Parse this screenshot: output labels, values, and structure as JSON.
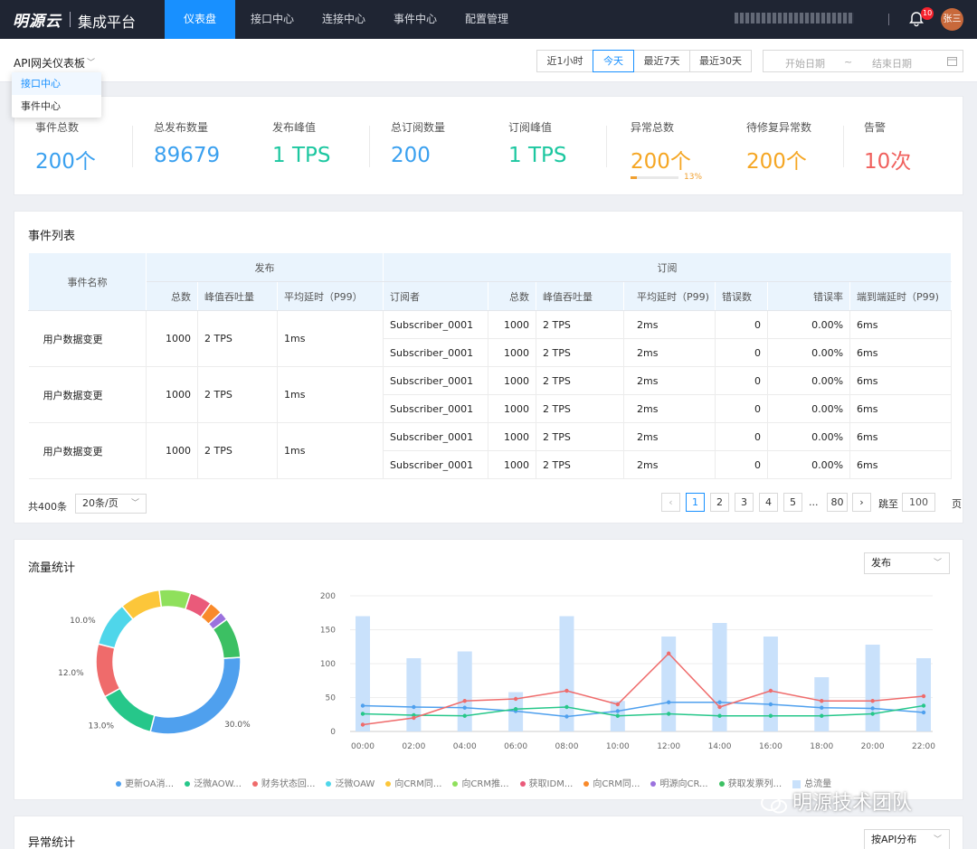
{
  "app": {
    "logo": "明源云",
    "name": "集成平台"
  },
  "nav": [
    {
      "label": "仪表盘",
      "active": true
    },
    {
      "label": "接口中心",
      "active": false
    },
    {
      "label": "连接中心",
      "active": false
    },
    {
      "label": "事件中心",
      "active": false
    },
    {
      "label": "配置管理",
      "active": false
    }
  ],
  "user": {
    "notification_count": "10",
    "avatar": "张三"
  },
  "dashboard_select": {
    "value": "API网关仪表板",
    "options": [
      "接口中心",
      "事件中心"
    ]
  },
  "time_range": {
    "options": [
      "近1小时",
      "今天",
      "最近7天",
      "最近30天"
    ],
    "selected": "今天",
    "start_placeholder": "开始日期",
    "separator": "~",
    "end_placeholder": "结束日期"
  },
  "stats": [
    {
      "label": "事件总数",
      "value": "200个",
      "color": "#3aa0ef"
    },
    {
      "label": "总发布数量",
      "value": "89679",
      "color": "#3aa0ef"
    },
    {
      "label": "发布峰值",
      "value": "1 TPS",
      "color": "#1cc7a0"
    },
    {
      "label": "总订阅数量",
      "value": "200",
      "color": "#3aa0ef"
    },
    {
      "label": "订阅峰值",
      "value": "1 TPS",
      "color": "#1cc7a0"
    },
    {
      "label": "异常总数",
      "value": "200个",
      "color": "#f5a623",
      "progress": 0.13,
      "progress_label": "13%"
    },
    {
      "label": "待修复异常数",
      "value": "200个",
      "color": "#f5a623"
    },
    {
      "label": "告警",
      "value": "10次",
      "color": "#f0605d"
    }
  ],
  "event_table": {
    "title": "事件列表",
    "group_headers": {
      "name": "事件名称",
      "publish": "发布",
      "subscribe": "订阅"
    },
    "columns": [
      "总数",
      "峰值吞吐量",
      "平均延时（P99）",
      "订阅者",
      "总数",
      "峰值吞吐量",
      "平均延时（P99)",
      "错误数",
      "错误率",
      "端到端延时（P99)"
    ],
    "rows": [
      {
        "name": "用户数据变更",
        "total": "1000",
        "peak": "2 TPS",
        "latency": "1ms",
        "subs": [
          {
            "subscriber": "Subscriber_0001",
            "total": "1000",
            "peak": "2 TPS",
            "latency": "2ms",
            "errors": "0",
            "error_rate": "0.00%",
            "e2e": "6ms"
          },
          {
            "subscriber": "Subscriber_0001",
            "total": "1000",
            "peak": "2 TPS",
            "latency": "2ms",
            "errors": "0",
            "error_rate": "0.00%",
            "e2e": "6ms"
          }
        ]
      },
      {
        "name": "用户数据变更",
        "total": "1000",
        "peak": "2 TPS",
        "latency": "1ms",
        "subs": [
          {
            "subscriber": "Subscriber_0001",
            "total": "1000",
            "peak": "2 TPS",
            "latency": "2ms",
            "errors": "0",
            "error_rate": "0.00%",
            "e2e": "6ms"
          },
          {
            "subscriber": "Subscriber_0001",
            "total": "1000",
            "peak": "2 TPS",
            "latency": "2ms",
            "errors": "0",
            "error_rate": "0.00%",
            "e2e": "6ms"
          }
        ]
      },
      {
        "name": "用户数据变更",
        "total": "1000",
        "peak": "2 TPS",
        "latency": "1ms",
        "subs": [
          {
            "subscriber": "Subscriber_0001",
            "total": "1000",
            "peak": "2 TPS",
            "latency": "2ms",
            "errors": "0",
            "error_rate": "0.00%",
            "e2e": "6ms"
          },
          {
            "subscriber": "Subscriber_0001",
            "total": "1000",
            "peak": "2 TPS",
            "latency": "2ms",
            "errors": "0",
            "error_rate": "0.00%",
            "e2e": "6ms"
          }
        ]
      }
    ],
    "pagination": {
      "total": "共400条",
      "page_size": "20条/页",
      "pages": [
        "1",
        "2",
        "3",
        "4",
        "5",
        "...",
        "80"
      ],
      "current": "1",
      "jump_label": "跳至",
      "jump_value": "100",
      "page_suffix": "页"
    }
  },
  "traffic": {
    "title": "流量统计",
    "select": "发布"
  },
  "exceptions": {
    "title": "异常统计",
    "select": "按API分布"
  },
  "chart_data": [
    {
      "type": "pie",
      "variant": "donut",
      "slices": [
        {
          "name": "更新OA消...",
          "value": 30.0,
          "color": "#4fa0ee"
        },
        {
          "name": "泛微AOW...",
          "value": 13.0,
          "color": "#26c78a"
        },
        {
          "name": "财务状态回...",
          "value": 12.0,
          "color": "#ef6b6b"
        },
        {
          "name": "泛微OAW",
          "value": 10.0,
          "color": "#4fd6ea"
        },
        {
          "name": "向CRM同...",
          "value": 9.0,
          "color": "#fcc63a"
        },
        {
          "name": "向CRM推...",
          "value": 7.0,
          "color": "#8fe05c"
        },
        {
          "name": "获取IDM...",
          "value": 5.0,
          "color": "#ea5a7a"
        },
        {
          "name": "向CRM同...",
          "value": 3.0,
          "color": "#f98a2a"
        },
        {
          "name": "明源向CR...",
          "value": 2.0,
          "color": "#9b72de"
        },
        {
          "name": "获取发票列...",
          "value": 9.0,
          "color": "#3cc063"
        }
      ],
      "labels_shown": [
        "30.0%",
        "13.0%",
        "12.0%",
        "10.0%"
      ]
    },
    {
      "type": "bar",
      "x": [
        "00:00",
        "01:00",
        "02:00",
        "03:00",
        "04:00",
        "05:00",
        "06:00",
        "07:00",
        "08:00",
        "09:00",
        "10:00",
        "11:00",
        "12:00",
        "13:00",
        "14:00",
        "15:00",
        "16:00",
        "17:00",
        "18:00",
        "19:00",
        "20:00",
        "21:00",
        "22:00"
      ],
      "x_ticks": [
        "00:00",
        "02:00",
        "04:00",
        "06:00",
        "08:00",
        "10:00",
        "12:00",
        "14:00",
        "16:00",
        "18:00",
        "20:00",
        "22:00"
      ],
      "ylim": [
        0,
        200
      ],
      "yticks": [
        0,
        50,
        100,
        150,
        200
      ],
      "grid": true,
      "bar_series": {
        "name": "总流量",
        "color": "#c9e1fb",
        "values": [
          170,
          null,
          108,
          null,
          118,
          null,
          58,
          null,
          170,
          null,
          45,
          null,
          140,
          null,
          160,
          null,
          140,
          null,
          80,
          null,
          128,
          null,
          108
        ]
      },
      "line_series": [
        {
          "name": "更新OA消...",
          "color": "#4fa0ee",
          "values": [
            38,
            null,
            36,
            null,
            35,
            null,
            30,
            null,
            22,
            null,
            30,
            null,
            43,
            null,
            43,
            null,
            40,
            null,
            35,
            null,
            34,
            null,
            28
          ]
        },
        {
          "name": "泛微AOW...",
          "color": "#26c78a",
          "values": [
            26,
            null,
            24,
            null,
            23,
            null,
            33,
            null,
            36,
            null,
            23,
            null,
            26,
            null,
            23,
            null,
            23,
            null,
            23,
            null,
            26,
            null,
            38
          ]
        },
        {
          "name": "财务状态回...",
          "color": "#ef6b6b",
          "values": [
            10,
            null,
            20,
            null,
            45,
            null,
            48,
            null,
            60,
            null,
            40,
            null,
            115,
            null,
            36,
            null,
            60,
            null,
            45,
            null,
            45,
            null,
            52
          ]
        }
      ]
    }
  ]
}
